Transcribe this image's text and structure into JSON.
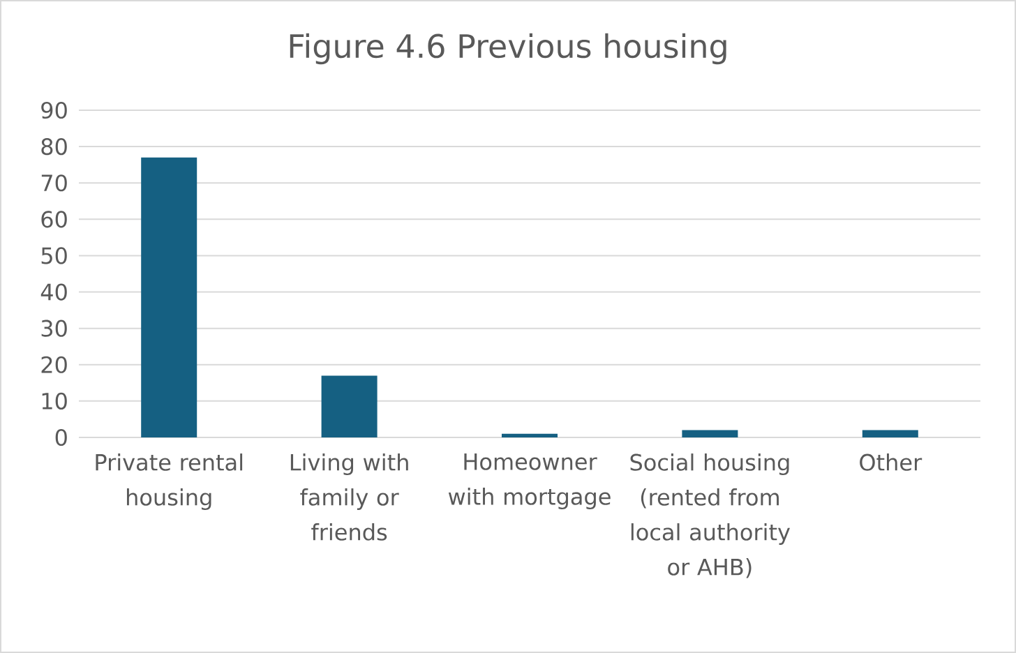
{
  "chart_data": {
    "type": "bar",
    "title": "Figure 4.6 Previous housing",
    "categories": [
      "Private rental housing",
      "Living with family or friends",
      "Homeowner with mortgage",
      "Social housing (rented from local authority or AHB)",
      "Other"
    ],
    "values": [
      77,
      17,
      1,
      2,
      2
    ],
    "color": "#156082",
    "ylim": [
      0,
      90
    ],
    "yticks": [
      0,
      10,
      20,
      30,
      40,
      50,
      60,
      70,
      80,
      90
    ],
    "grid": "y"
  }
}
